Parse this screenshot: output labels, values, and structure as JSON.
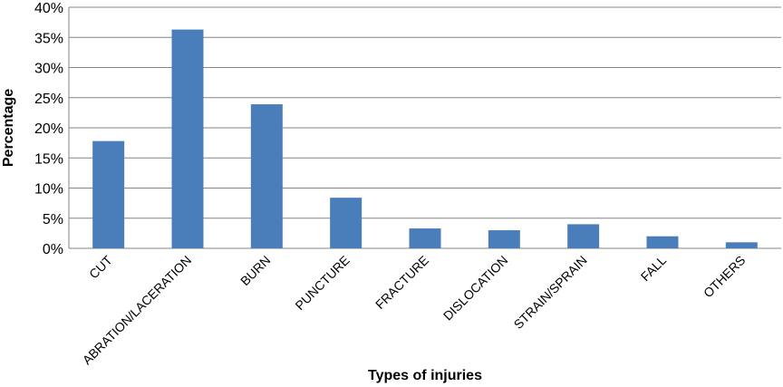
{
  "chart_data": {
    "type": "bar",
    "categories": [
      "CUT",
      "ABRATION/LACERATION",
      "BURN",
      "PUNCTURE",
      "FRACTURE",
      "DISLOCATION",
      "STRAIN/SPRAIN",
      "FALL",
      "OTHERS"
    ],
    "values": [
      17.8,
      36.3,
      23.9,
      8.4,
      3.3,
      3.0,
      4.0,
      2.0,
      1.0
    ],
    "xlabel": "Types of injuries",
    "ylabel": "Percentage",
    "ylim": [
      0,
      40
    ],
    "yticks": [
      0,
      5,
      10,
      15,
      20,
      25,
      30,
      35,
      40
    ],
    "ytick_labels": [
      "0%",
      "5%",
      "10%",
      "15%",
      "20%",
      "25%",
      "30%",
      "35%",
      "40%"
    ],
    "grid": true,
    "bar_color": "#4a7ebb",
    "grid_color": "#868686"
  }
}
